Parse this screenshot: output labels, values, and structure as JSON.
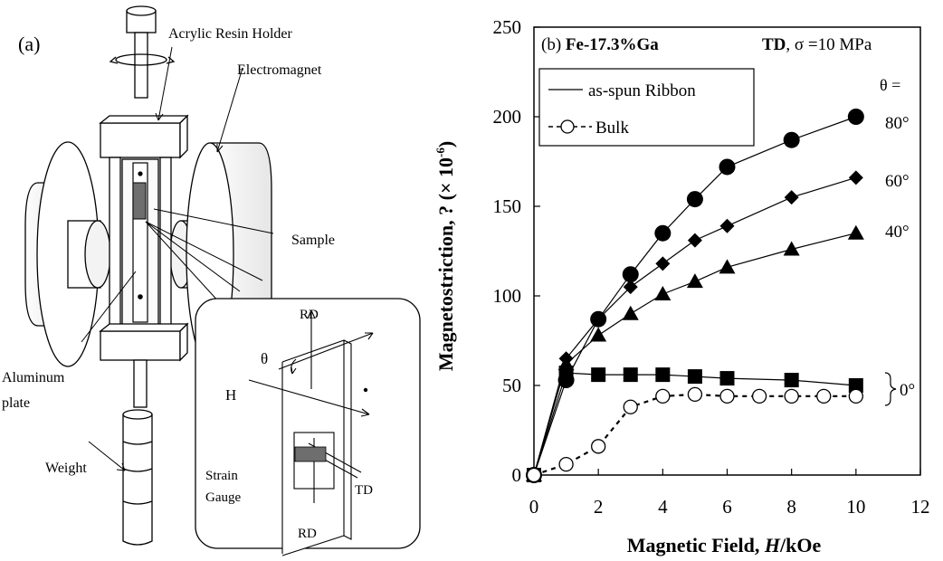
{
  "figure_a": {
    "panel_label": "(a)",
    "labels": {
      "holder": "Acrylic Resin Holder",
      "electromagnet": "Electromagnet",
      "sample": "Sample",
      "plate_line1": "Aluminum",
      "plate_line2": "plate",
      "weight": "Weight"
    },
    "inset": {
      "rd_top": "RD",
      "theta": "θ",
      "h": "H",
      "gauge_line1": "Strain",
      "gauge_line2": "Gauge",
      "td": "TD",
      "rd_bottom": "RD"
    }
  },
  "figure_b": {
    "panel_prefix": "(b) ",
    "alloy": "Fe-17.3%Ga",
    "direction": "TD",
    "condition": ", σ =10 MPa",
    "legend": {
      "ribbon": "as-spun Ribbon",
      "bulk": "Bulk"
    },
    "theta_header": "θ =",
    "curve_labels": [
      "80°",
      "60°",
      "40°",
      "0°"
    ],
    "y_axis_label": "Magnetostriction, ? (× 10",
    "y_axis_exp": "-6",
    "y_axis_close": ")",
    "x_axis_label_prefix": "Magnetic Field, ",
    "x_axis_label_var": "H",
    "x_axis_label_unit": "/kOe"
  },
  "chart_data": {
    "type": "scatter",
    "xlim": [
      0,
      12
    ],
    "ylim": [
      0,
      250
    ],
    "xticks": [
      "0",
      "2",
      "4",
      "6",
      "8",
      "10",
      "12"
    ],
    "yticks": [
      "0",
      "50",
      "100",
      "150",
      "200",
      "250"
    ],
    "grid": false,
    "legend_position": "top-left",
    "series": [
      {
        "name": "as-spun Ribbon",
        "marker": "circle-filled",
        "line": "solid",
        "x": [
          0,
          1,
          2,
          3,
          4,
          5,
          6,
          8,
          10
        ],
        "y": [
          0,
          53,
          87,
          112,
          135,
          154,
          172,
          187,
          200
        ]
      },
      {
        "marker": "diamond-filled",
        "line": "solid",
        "x": [
          0,
          1,
          2,
          3,
          4,
          5,
          6,
          8,
          10
        ],
        "y": [
          0,
          65,
          87,
          105,
          118,
          131,
          139,
          155,
          166
        ]
      },
      {
        "marker": "triangle-filled",
        "line": "solid",
        "x": [
          0,
          1,
          2,
          3,
          4,
          5,
          6,
          8,
          10
        ],
        "y": [
          0,
          62,
          78,
          90,
          101,
          108,
          116,
          126,
          135
        ]
      },
      {
        "marker": "square-filled",
        "line": "solid",
        "x": [
          0,
          1,
          2,
          3,
          4,
          5,
          6,
          8,
          10
        ],
        "y": [
          0,
          57,
          56,
          56,
          56,
          55,
          54,
          53,
          50
        ]
      },
      {
        "name": "Bulk",
        "marker": "circle-open",
        "line": "dashed",
        "x": [
          0,
          1,
          2,
          3,
          4,
          5,
          6,
          7,
          8,
          9,
          10
        ],
        "y": [
          0,
          6,
          16,
          38,
          44,
          45,
          44,
          44,
          44,
          44,
          44
        ]
      }
    ]
  }
}
